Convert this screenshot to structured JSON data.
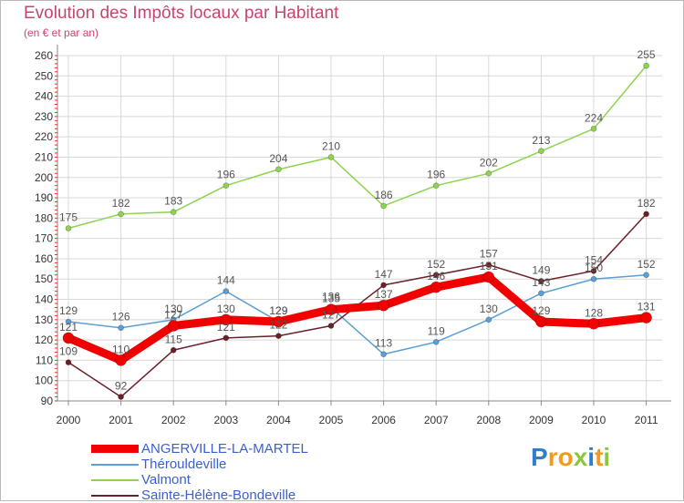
{
  "header": {
    "title": "Evolution des Impôts locaux par Habitant",
    "subtitle": "(en € et par an)"
  },
  "logo": {
    "letters": [
      "P",
      "r",
      "o",
      "x",
      "i",
      "t",
      "i"
    ]
  },
  "colors": {
    "title": "#c8446f",
    "legend_text": "#3c5fcf",
    "grid": "#d8d8d8"
  },
  "chart_data": {
    "type": "line",
    "title": "Evolution des Impôts locaux par Habitant",
    "subtitle": "(en € et par an)",
    "x": [
      "2000",
      "2001",
      "2002",
      "2003",
      "2004",
      "2005",
      "2006",
      "2007",
      "2008",
      "2009",
      "2010",
      "2011"
    ],
    "ylim": [
      90,
      260
    ],
    "yticks": [
      90,
      100,
      110,
      120,
      130,
      140,
      150,
      160,
      170,
      180,
      190,
      200,
      210,
      220,
      230,
      240,
      250,
      260
    ],
    "grid": true,
    "legend_position": "bottom-left",
    "series": [
      {
        "name": "Valmont",
        "color": "#8ed34f",
        "width": 1.5,
        "values": [
          175,
          182,
          183,
          196,
          204,
          210,
          186,
          196,
          202,
          213,
          224,
          255
        ]
      },
      {
        "name": "Thérouldeville",
        "color": "#5b9fd4",
        "width": 1.5,
        "values": [
          129,
          126,
          130,
          144,
          129,
          136,
          113,
          119,
          130,
          143,
          150,
          152
        ]
      },
      {
        "name": "Sainte-Hélène-Bondeville",
        "color": "#6b1f28",
        "width": 1.5,
        "values": [
          109,
          92,
          115,
          121,
          122,
          127,
          147,
          152,
          157,
          149,
          154,
          182
        ]
      },
      {
        "name": "ANGERVILLE-LA-MARTEL",
        "color": "#f20000",
        "width": 9,
        "values": [
          121,
          110,
          127,
          130,
          129,
          135,
          137,
          146,
          151,
          129,
          128,
          131
        ]
      }
    ],
    "legend_order": [
      "ANGERVILLE-LA-MARTEL",
      "Thérouldeville",
      "Valmont",
      "Sainte-Hélène-Bondeville"
    ]
  }
}
